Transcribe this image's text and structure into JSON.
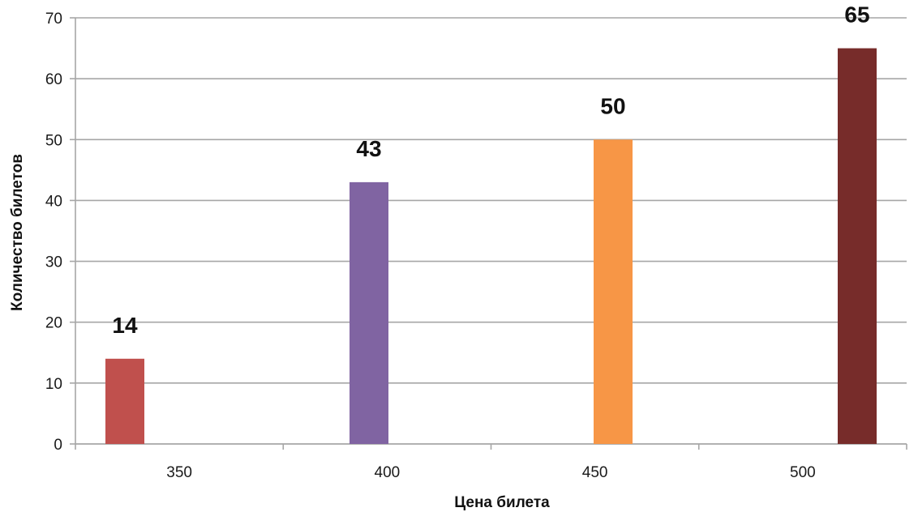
{
  "chart_data": {
    "type": "bar",
    "categories": [
      "350",
      "400",
      "450",
      "500"
    ],
    "values": [
      14,
      43,
      50,
      65
    ],
    "colors": [
      "#c0504d",
      "#8064a2",
      "#f79646",
      "#772c2a"
    ],
    "data_labels": [
      "14",
      "43",
      "50",
      "65"
    ],
    "xlabel": "Цена билета",
    "ylabel": "Количество билетов",
    "ylim": [
      0,
      70
    ],
    "yticks": [
      "0",
      "10",
      "20",
      "30",
      "40",
      "50",
      "60",
      "70"
    ],
    "grid": true,
    "gridline_color": "#a6a6a6",
    "legend": "none"
  }
}
